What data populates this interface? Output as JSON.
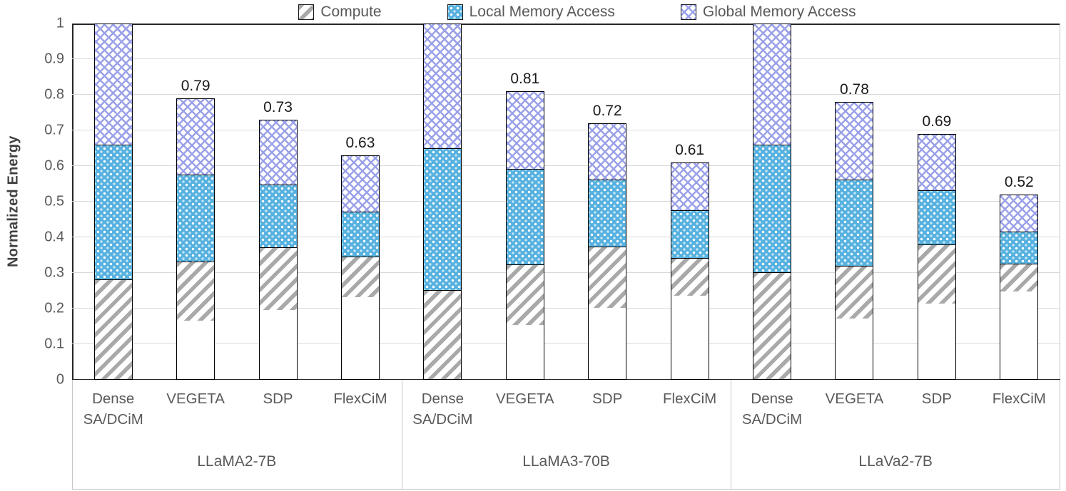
{
  "legend": {
    "items": [
      {
        "label": "Compute",
        "icon": "compute-hatch-swatch",
        "pattern": "gray-diagonal-hatch",
        "color": "#a9a9a9"
      },
      {
        "label": "Local Memory Access",
        "icon": "local-memory-swatch",
        "pattern": "blue-dot-lattice",
        "color": "#57b1df"
      },
      {
        "label": "Global Memory Access",
        "icon": "global-memory-swatch",
        "pattern": "lavender-weave",
        "color": "#9ba1e8"
      }
    ]
  },
  "colors": {
    "bar_border": "#000000",
    "gridline": "#d9d9d9",
    "axis_line": "#262626",
    "axis_text": "#595959",
    "value_text": "#1a1a1a"
  },
  "chart_data": {
    "type": "bar",
    "stacked": true,
    "title": "",
    "ylabel": "Normalized Energy",
    "xlabel": "",
    "ylim": [
      0,
      1
    ],
    "ytick_labels": [
      "0",
      "0.1",
      "0.2",
      "0.3",
      "0.4",
      "0.5",
      "0.6",
      "0.7",
      "0.8",
      "0.9",
      "1"
    ],
    "ytick_values": [
      0,
      0.1,
      0.2,
      0.3,
      0.4,
      0.5,
      0.6,
      0.7,
      0.8,
      0.9,
      1
    ],
    "grid": true,
    "legend_position": "top",
    "series_names": [
      "Compute",
      "Local Memory Access",
      "Global Memory Access"
    ],
    "groups": [
      {
        "label": "LLaMA2-7B",
        "bars": [
          {
            "category": "Dense SA/DCiM",
            "compute": 0.28,
            "local_memory_access": 0.38,
            "global_memory_access": 0.34,
            "total": 1.0,
            "value_label": ""
          },
          {
            "category": "VEGETA",
            "compute": 0.21,
            "local_memory_access": 0.31,
            "global_memory_access": 0.27,
            "total": 0.79,
            "value_label": "0.79"
          },
          {
            "category": "SDP",
            "compute": 0.24,
            "local_memory_access": 0.24,
            "global_memory_access": 0.25,
            "total": 0.73,
            "value_label": "0.73"
          },
          {
            "category": "FlexCiM",
            "compute": 0.18,
            "local_memory_access": 0.2,
            "global_memory_access": 0.25,
            "total": 0.63,
            "value_label": "0.63"
          }
        ]
      },
      {
        "label": "LLaMA3-70B",
        "bars": [
          {
            "category": "Dense SA/DCiM",
            "compute": 0.25,
            "local_memory_access": 0.4,
            "global_memory_access": 0.35,
            "total": 1.0,
            "value_label": ""
          },
          {
            "category": "VEGETA",
            "compute": 0.21,
            "local_memory_access": 0.33,
            "global_memory_access": 0.27,
            "total": 0.81,
            "value_label": "0.81"
          },
          {
            "category": "SDP",
            "compute": 0.24,
            "local_memory_access": 0.26,
            "global_memory_access": 0.22,
            "total": 0.72,
            "value_label": "0.72"
          },
          {
            "category": "FlexCiM",
            "compute": 0.17,
            "local_memory_access": 0.22,
            "global_memory_access": 0.22,
            "total": 0.61,
            "value_label": "0.61"
          }
        ]
      },
      {
        "label": "LLaVa2-7B",
        "bars": [
          {
            "category": "Dense SA/DCiM",
            "compute": 0.3,
            "local_memory_access": 0.36,
            "global_memory_access": 0.34,
            "total": 1.0,
            "value_label": ""
          },
          {
            "category": "VEGETA",
            "compute": 0.19,
            "local_memory_access": 0.31,
            "global_memory_access": 0.28,
            "total": 0.78,
            "value_label": "0.78"
          },
          {
            "category": "SDP",
            "compute": 0.24,
            "local_memory_access": 0.22,
            "global_memory_access": 0.23,
            "total": 0.69,
            "value_label": "0.69"
          },
          {
            "category": "FlexCiM",
            "compute": 0.15,
            "local_memory_access": 0.17,
            "global_memory_access": 0.2,
            "total": 0.52,
            "value_label": "0.52"
          }
        ]
      }
    ]
  }
}
